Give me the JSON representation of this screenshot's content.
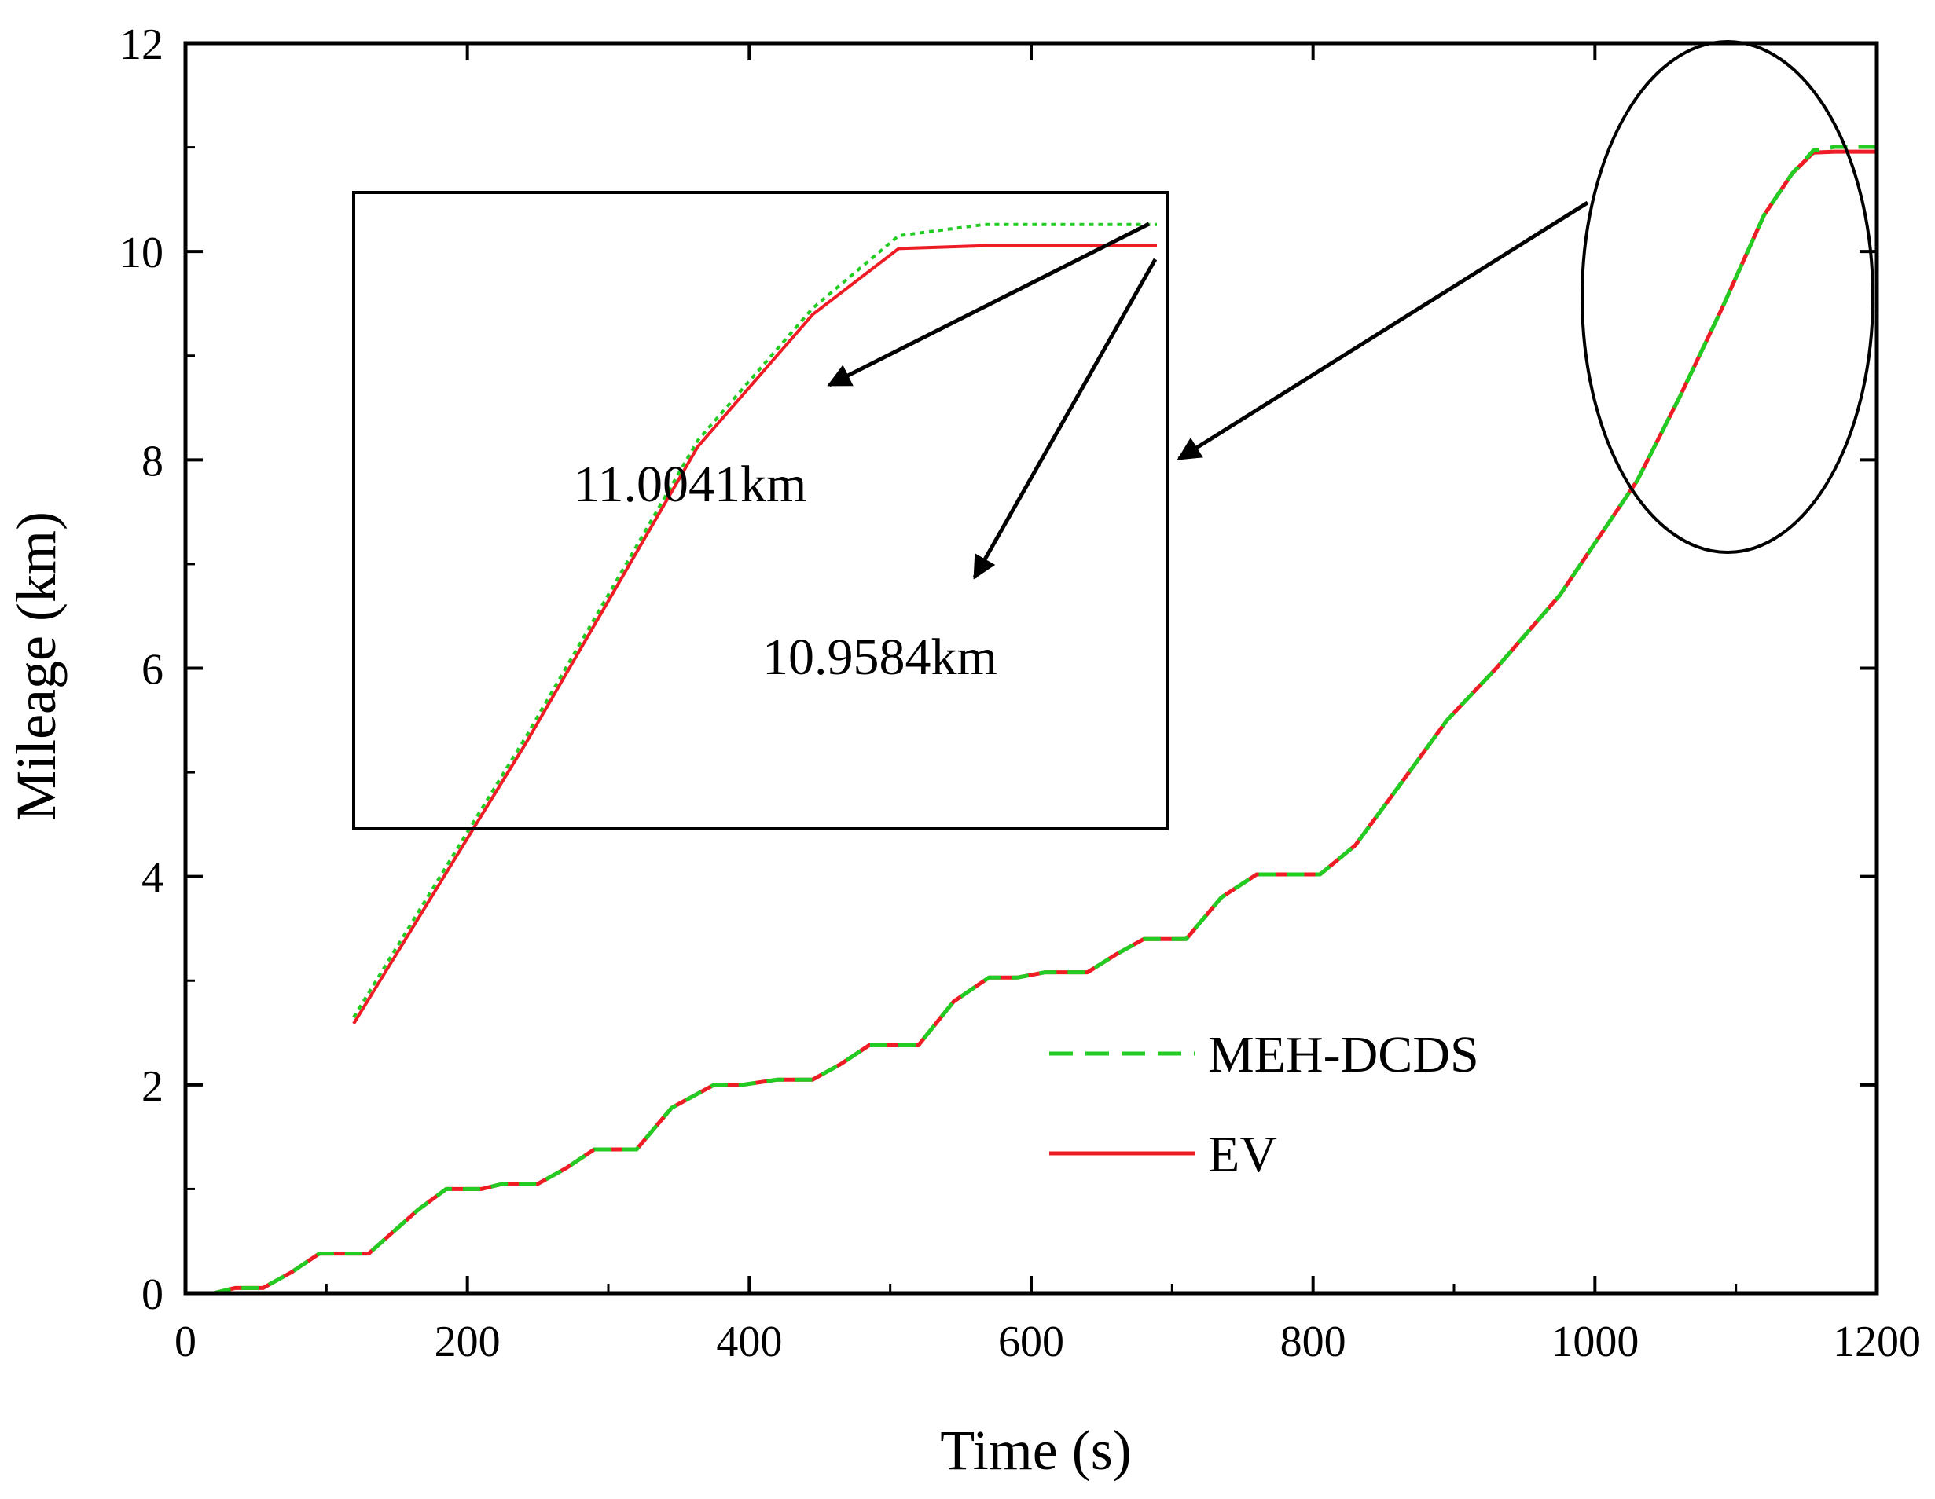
{
  "chart_data": {
    "type": "line",
    "title": "",
    "xlabel": "Time (s)",
    "ylabel": "Mileage (km)",
    "xlim": [
      0,
      1200
    ],
    "ylim": [
      0,
      12
    ],
    "xticks": [
      0,
      200,
      400,
      600,
      800,
      1000,
      1200
    ],
    "yticks": [
      0,
      2,
      4,
      6,
      8,
      10,
      12
    ],
    "grid": false,
    "legend_position": "bottom-right",
    "colors": {
      "green": "#22cc22",
      "red": "#ee1c24",
      "black": "#000000"
    },
    "series": [
      {
        "name": "MEH-DCDS",
        "style": "dashed",
        "color": "#22cc22",
        "x": [
          0,
          20,
          35,
          55,
          75,
          95,
          130,
          165,
          185,
          210,
          225,
          250,
          270,
          290,
          320,
          345,
          375,
          395,
          420,
          445,
          465,
          485,
          520,
          545,
          570,
          590,
          610,
          640,
          660,
          680,
          710,
          735,
          760,
          775,
          805,
          830,
          860,
          895,
          930,
          975,
          1000,
          1030,
          1060,
          1090,
          1120,
          1140,
          1155,
          1170,
          1200
        ],
        "y": [
          0,
          0,
          0.05,
          0.05,
          0.2,
          0.38,
          0.38,
          0.8,
          1.0,
          1.0,
          1.05,
          1.05,
          1.2,
          1.38,
          1.38,
          1.78,
          2.0,
          2.0,
          2.05,
          2.05,
          2.2,
          2.38,
          2.38,
          2.8,
          3.03,
          3.03,
          3.08,
          3.08,
          3.25,
          3.4,
          3.4,
          3.8,
          4.02,
          4.02,
          4.02,
          4.3,
          4.85,
          5.5,
          6.0,
          6.7,
          7.2,
          7.8,
          8.6,
          9.45,
          10.35,
          10.75,
          10.97,
          11.0041,
          11.0041
        ]
      },
      {
        "name": "EV",
        "style": "solid",
        "color": "#ee1c24",
        "x": [
          0,
          20,
          35,
          55,
          75,
          95,
          130,
          165,
          185,
          210,
          225,
          250,
          270,
          290,
          320,
          345,
          375,
          395,
          420,
          445,
          465,
          485,
          520,
          545,
          570,
          590,
          610,
          640,
          660,
          680,
          710,
          735,
          760,
          775,
          805,
          830,
          860,
          895,
          930,
          975,
          1000,
          1030,
          1060,
          1090,
          1120,
          1140,
          1155,
          1170,
          1200
        ],
        "y": [
          0,
          0,
          0.05,
          0.05,
          0.2,
          0.38,
          0.38,
          0.8,
          1.0,
          1.0,
          1.05,
          1.05,
          1.2,
          1.38,
          1.38,
          1.78,
          2.0,
          2.0,
          2.05,
          2.05,
          2.2,
          2.38,
          2.38,
          2.8,
          3.03,
          3.03,
          3.08,
          3.08,
          3.25,
          3.4,
          3.4,
          3.8,
          4.02,
          4.02,
          4.02,
          4.3,
          4.85,
          5.5,
          6.0,
          6.7,
          7.2,
          7.8,
          8.6,
          9.45,
          10.35,
          10.75,
          10.95,
          10.9584,
          10.9584
        ]
      }
    ],
    "annotations": [
      {
        "text": "11.0041km",
        "series": "MEH-DCDS",
        "value": 11.0041
      },
      {
        "text": "10.9584km",
        "series": "EV",
        "value": 10.9584
      }
    ],
    "inset": {
      "description": "zoomed view of final segment",
      "x_range": [
        1060,
        1200
      ],
      "y_range": [
        9.0,
        11.12
      ]
    }
  }
}
